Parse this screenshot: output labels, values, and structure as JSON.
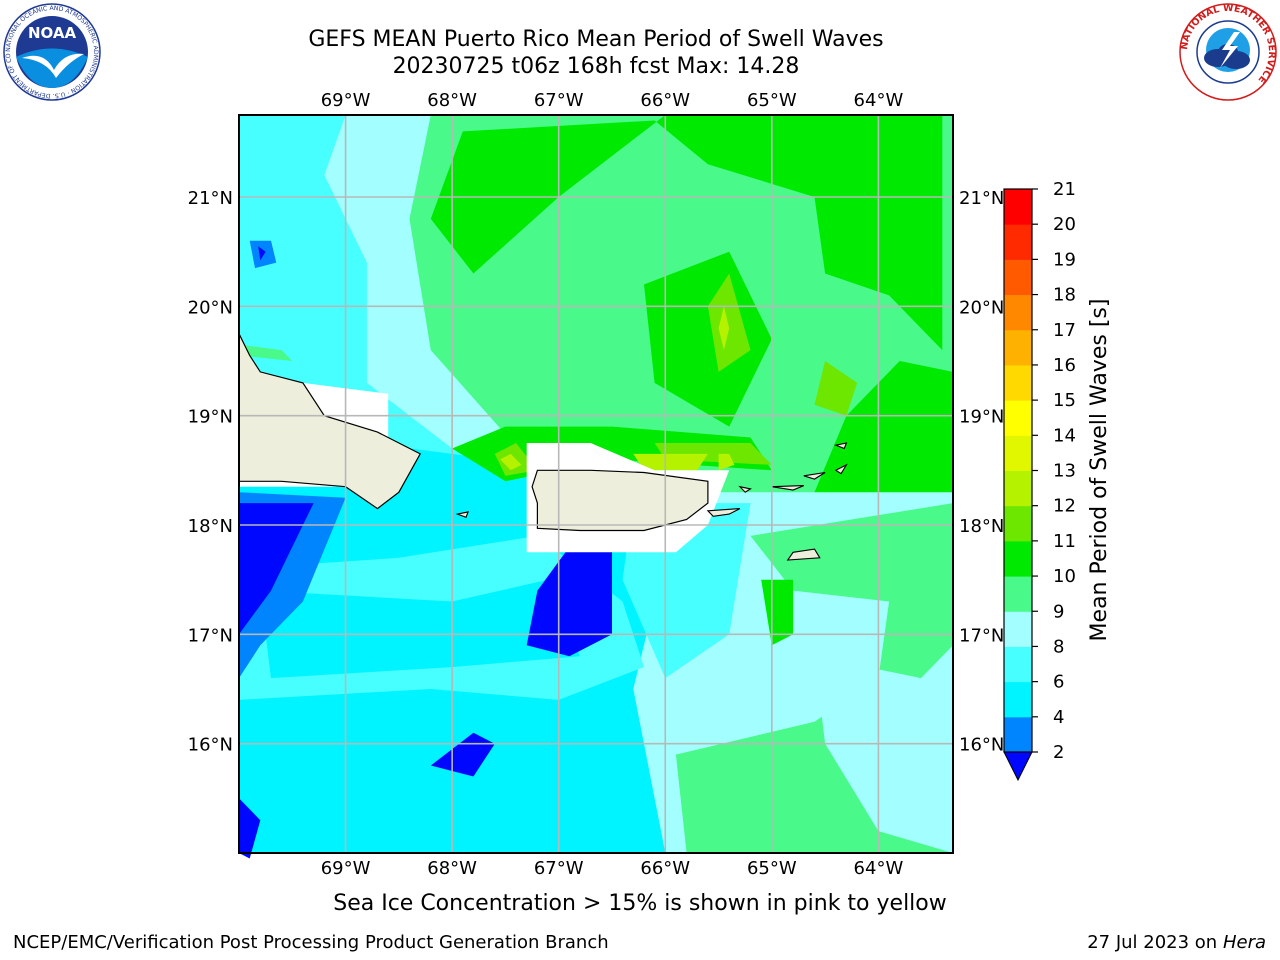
{
  "title": {
    "line1": "GEFS MEAN Puerto Rico Mean Period of Swell Waves",
    "line2": "20230725 t06z 168h fcst   Max: 14.28"
  },
  "map": {
    "lon_labels": [
      "69°W",
      "68°W",
      "67°W",
      "66°W",
      "65°W",
      "64°W"
    ],
    "lat_labels": [
      "21°N",
      "20°N",
      "19°N",
      "18°N",
      "17°N",
      "16°N"
    ],
    "lon_range": [
      -70,
      -63.3
    ],
    "lat_range": [
      15,
      21.75
    ]
  },
  "colorbar": {
    "label": "Mean Period of Swell Waves [s]",
    "ticks": [
      "2",
      "4",
      "6",
      "8",
      "9",
      "10",
      "11",
      "12",
      "13",
      "14",
      "15",
      "16",
      "17",
      "18",
      "19",
      "20",
      "21"
    ],
    "colors": [
      "#0007ff",
      "#0085ff",
      "#00f4ff",
      "#47ffff",
      "#a3ffff",
      "#49f98a",
      "#00e900",
      "#6de600",
      "#b5f200",
      "#e0f700",
      "#ffff00",
      "#ffd900",
      "#ffb100",
      "#ff8800",
      "#ff5a00",
      "#ff2a00",
      "#ff0000"
    ]
  },
  "land_color": "#eeeedc",
  "note": "Sea Ice Concentration > 15% is shown in pink to yellow",
  "footer": {
    "left": "NCEP/EMC/Verification Post Processing Product Generation Branch",
    "right_date": "27 Jul 2023 on ",
    "right_host": "Hera"
  },
  "logos": {
    "noaa": "NOAA",
    "noaa_ring": "NATIONAL OCEANIC AND ATMOSPHERIC ADMINISTRATION · U.S. DEPARTMENT OF COMMERCE",
    "nws_ring": "NATIONAL WEATHER SERVICE"
  },
  "icons": [
    "noaa-logo-icon",
    "nws-logo-icon"
  ]
}
